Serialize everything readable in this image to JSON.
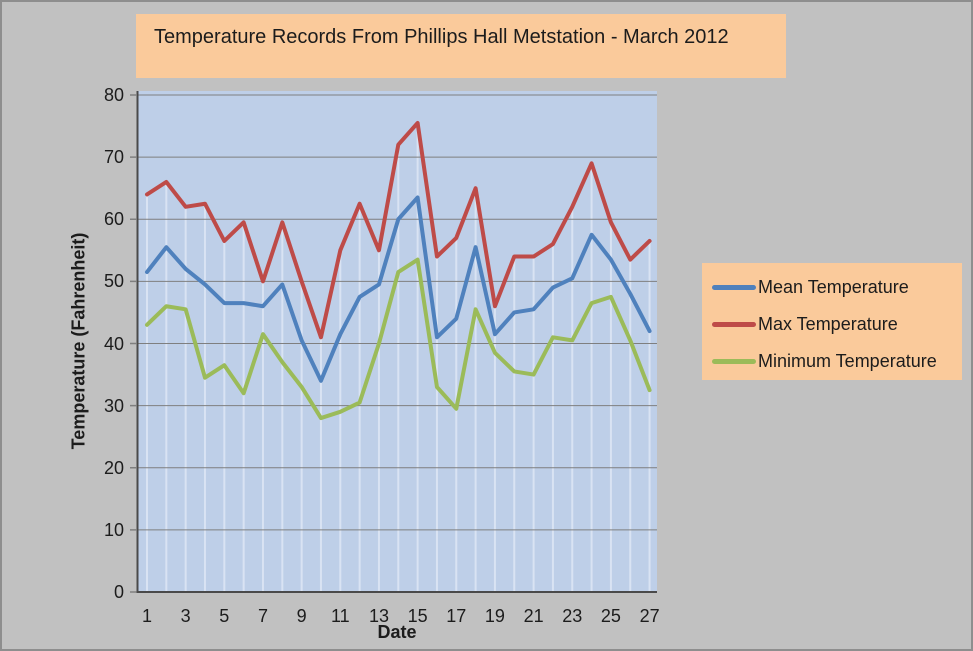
{
  "chart_data": {
    "type": "line",
    "title": "Temperature Records From Phillips Hall Metstation - March 2012",
    "xlabel": "Date",
    "ylabel": "Temperature (Fahrenheit)",
    "ylim": [
      0,
      80
    ],
    "y_ticks": [
      0,
      10,
      20,
      30,
      40,
      50,
      60,
      70,
      80
    ],
    "x_tick_labels": [
      1,
      3,
      5,
      7,
      9,
      11,
      13,
      15,
      17,
      19,
      21,
      23,
      25,
      27
    ],
    "days": [
      1,
      2,
      3,
      4,
      5,
      6,
      7,
      8,
      9,
      10,
      11,
      12,
      13,
      14,
      15,
      16,
      17,
      18,
      19,
      20,
      21,
      22,
      23,
      24,
      25,
      26,
      27
    ],
    "grid": "horizontal",
    "drop_lines": true,
    "legend_position": "right",
    "series": [
      {
        "name": "Mean Temperature",
        "color": "#4F81BD",
        "values": [
          51.5,
          55.5,
          52,
          49.5,
          46.5,
          46.5,
          46,
          49.5,
          40.5,
          34,
          41.5,
          47.5,
          49.5,
          60,
          63.5,
          41,
          44,
          55.5,
          41.5,
          45,
          45.5,
          49,
          50.5,
          57.5,
          53.5,
          48,
          42
        ]
      },
      {
        "name": "Max Temperature",
        "color": "#BE4B48",
        "values": [
          64,
          66,
          62,
          62.5,
          56.5,
          59.5,
          50,
          59.5,
          50,
          41,
          55,
          62.5,
          55,
          72,
          75.5,
          54,
          57,
          65,
          46,
          54,
          54,
          56,
          62,
          69,
          59.5,
          53.5,
          56.5
        ]
      },
      {
        "name": "Minimum Temperature",
        "color": "#9BBB59",
        "values": [
          43,
          46,
          45.5,
          34.5,
          36.5,
          32,
          41.5,
          37,
          33,
          28,
          29,
          30.5,
          40,
          51.5,
          53.5,
          33,
          29.5,
          45.5,
          38.5,
          35.5,
          35,
          41,
          40.5,
          46.5,
          47.5,
          40.5,
          32.5
        ]
      }
    ]
  },
  "colors": {
    "background": "#C1C1C1",
    "frame_border": "#8E8E8E",
    "panel_fill": "#FACA9B",
    "plot_background": "#BECFE8",
    "drop_line": "#D9E3F3",
    "gridline": "#7F7F7F",
    "axis_line": "#4A4A4A",
    "text": "#1C1C1C"
  }
}
